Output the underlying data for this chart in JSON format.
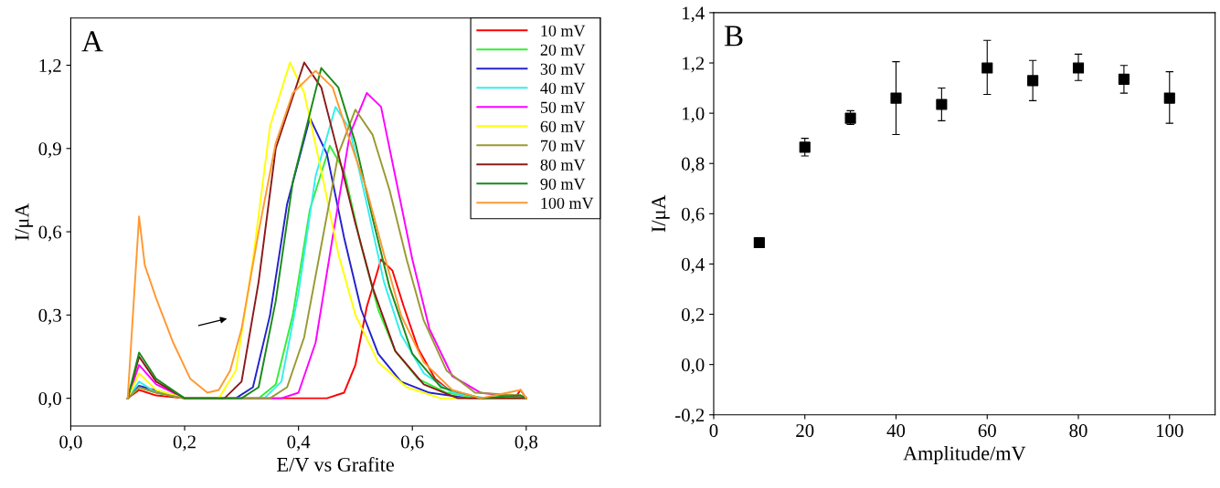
{
  "chart_data": [
    {
      "type": "line",
      "title": "A",
      "xlabel": "E/V vs Grafite",
      "ylabel": "I/μA",
      "xlim": [
        0,
        0.93
      ],
      "ylim": [
        -0.1,
        1.37
      ],
      "xticks": [
        {
          "value": 0,
          "label": "0,0"
        },
        {
          "value": 0.2,
          "label": "0,2"
        },
        {
          "value": 0.4,
          "label": "0,4"
        },
        {
          "value": 0.6,
          "label": "0,6"
        },
        {
          "value": 0.8,
          "label": "0,8"
        }
      ],
      "yticks": [
        {
          "value": 0,
          "label": "0,0"
        },
        {
          "value": 0.3,
          "label": "0,3"
        },
        {
          "value": 0.6,
          "label": "0,6"
        },
        {
          "value": 0.9,
          "label": "0,9"
        },
        {
          "value": 1.2,
          "label": "1,2"
        }
      ],
      "legend": "top right",
      "grid": false,
      "marker": "none",
      "line_style": "solid",
      "series": [
        {
          "name": "10 mV",
          "color": "#ff0000",
          "x": [
            0.1,
            0.12,
            0.15,
            0.2,
            0.45,
            0.48,
            0.5,
            0.52,
            0.545,
            0.565,
            0.585,
            0.61,
            0.64,
            0.67,
            0.72,
            0.78,
            0.79,
            0.8
          ],
          "values": [
            0,
            0.03,
            0.01,
            0,
            0,
            0.02,
            0.12,
            0.33,
            0.5,
            0.46,
            0.33,
            0.18,
            0.07,
            0.02,
            0,
            0,
            0.03,
            0
          ]
        },
        {
          "name": "20 mV",
          "color": "#33ee33",
          "x": [
            0.1,
            0.12,
            0.15,
            0.2,
            0.33,
            0.36,
            0.39,
            0.42,
            0.455,
            0.48,
            0.51,
            0.54,
            0.57,
            0.61,
            0.66,
            0.72,
            0.79,
            0.8
          ],
          "values": [
            0,
            0.04,
            0.02,
            0,
            0,
            0.05,
            0.3,
            0.68,
            0.91,
            0.82,
            0.55,
            0.32,
            0.17,
            0.07,
            0.02,
            0,
            0.01,
            0
          ]
        },
        {
          "name": "30 mV",
          "color": "#2222cc",
          "x": [
            0.1,
            0.12,
            0.2,
            0.29,
            0.32,
            0.35,
            0.38,
            0.42,
            0.45,
            0.48,
            0.51,
            0.54,
            0.58,
            0.63,
            0.7,
            0.8
          ],
          "values": [
            0,
            0.045,
            0,
            0,
            0.04,
            0.3,
            0.7,
            1.01,
            0.88,
            0.58,
            0.32,
            0.16,
            0.06,
            0.02,
            0,
            0
          ]
        },
        {
          "name": "40 mV",
          "color": "#33eeee",
          "x": [
            0.1,
            0.12,
            0.15,
            0.2,
            0.34,
            0.37,
            0.4,
            0.43,
            0.465,
            0.49,
            0.52,
            0.55,
            0.58,
            0.62,
            0.67,
            0.73,
            0.8
          ],
          "values": [
            0,
            0.06,
            0.02,
            0,
            0,
            0.06,
            0.38,
            0.8,
            1.05,
            0.97,
            0.7,
            0.42,
            0.23,
            0.09,
            0.02,
            0,
            0
          ]
        },
        {
          "name": "50 mV",
          "color": "#ff00ff",
          "x": [
            0.1,
            0.12,
            0.15,
            0.2,
            0.37,
            0.4,
            0.43,
            0.46,
            0.49,
            0.52,
            0.545,
            0.57,
            0.6,
            0.63,
            0.67,
            0.72,
            0.8
          ],
          "values": [
            0,
            0.12,
            0.05,
            0,
            0,
            0.02,
            0.2,
            0.58,
            0.95,
            1.1,
            1.05,
            0.8,
            0.5,
            0.25,
            0.08,
            0.02,
            0
          ]
        },
        {
          "name": "60 mV",
          "color": "#ffff00",
          "x": [
            0.1,
            0.12,
            0.15,
            0.2,
            0.26,
            0.29,
            0.32,
            0.35,
            0.385,
            0.41,
            0.44,
            0.47,
            0.5,
            0.54,
            0.59,
            0.65,
            0.8
          ],
          "values": [
            0,
            0.09,
            0.03,
            0,
            0,
            0.1,
            0.5,
            0.98,
            1.21,
            1.1,
            0.82,
            0.52,
            0.3,
            0.13,
            0.04,
            0,
            0
          ]
        },
        {
          "name": "70 mV",
          "color": "#999933",
          "x": [
            0.1,
            0.12,
            0.15,
            0.2,
            0.35,
            0.38,
            0.41,
            0.44,
            0.47,
            0.5,
            0.53,
            0.56,
            0.59,
            0.62,
            0.66,
            0.71,
            0.79,
            0.8
          ],
          "values": [
            0,
            0.04,
            0.02,
            0,
            0,
            0.04,
            0.22,
            0.55,
            0.88,
            1.04,
            0.95,
            0.75,
            0.5,
            0.28,
            0.1,
            0.02,
            0.01,
            0
          ]
        },
        {
          "name": "80 mV",
          "color": "#8b1a1a",
          "x": [
            0.1,
            0.12,
            0.15,
            0.2,
            0.27,
            0.3,
            0.33,
            0.36,
            0.41,
            0.44,
            0.47,
            0.5,
            0.53,
            0.57,
            0.62,
            0.68,
            0.8
          ],
          "values": [
            0,
            0.15,
            0.06,
            0,
            0,
            0.06,
            0.42,
            0.9,
            1.21,
            1.12,
            0.88,
            0.63,
            0.4,
            0.17,
            0.05,
            0,
            0
          ]
        },
        {
          "name": "90 mV",
          "color": "#1a8a1a",
          "x": [
            0.1,
            0.12,
            0.15,
            0.2,
            0.3,
            0.33,
            0.36,
            0.39,
            0.44,
            0.47,
            0.5,
            0.53,
            0.56,
            0.6,
            0.65,
            0.72,
            0.79,
            0.8
          ],
          "values": [
            0,
            0.165,
            0.07,
            0,
            0,
            0.04,
            0.35,
            0.78,
            1.19,
            1.12,
            0.92,
            0.65,
            0.4,
            0.16,
            0.04,
            0,
            0.01,
            0
          ]
        },
        {
          "name": "100 mV",
          "color": "#ff9933",
          "x": [
            0.1,
            0.12,
            0.13,
            0.15,
            0.18,
            0.21,
            0.24,
            0.26,
            0.28,
            0.3,
            0.33,
            0.36,
            0.39,
            0.43,
            0.46,
            0.49,
            0.52,
            0.55,
            0.58,
            0.62,
            0.67,
            0.72,
            0.79,
            0.8
          ],
          "values": [
            0,
            0.655,
            0.48,
            0.36,
            0.2,
            0.07,
            0.02,
            0.03,
            0.1,
            0.25,
            0.6,
            0.92,
            1.1,
            1.18,
            1.12,
            0.93,
            0.75,
            0.52,
            0.3,
            0.13,
            0.03,
            0,
            0.03,
            0
          ]
        }
      ]
    },
    {
      "type": "scatter",
      "title": "B",
      "xlabel": "Amplitude/mV",
      "ylabel": "I/μA",
      "xlim": [
        0,
        110
      ],
      "ylim": [
        -0.2,
        1.4
      ],
      "xticks": [
        0,
        20,
        40,
        60,
        80,
        100
      ],
      "yticks": [
        {
          "value": -0.2,
          "label": "-0,2"
        },
        {
          "value": 0,
          "label": "0,0"
        },
        {
          "value": 0.2,
          "label": "0,2"
        },
        {
          "value": 0.4,
          "label": "0,4"
        },
        {
          "value": 0.6,
          "label": "0,6"
        },
        {
          "value": 0.8,
          "label": "0,8"
        },
        {
          "value": 1.0,
          "label": "1,0"
        },
        {
          "value": 1.2,
          "label": "1,2"
        },
        {
          "value": 1.4,
          "label": "1,4"
        }
      ],
      "grid": false,
      "legend": false,
      "marker": "square",
      "series": [
        {
          "color": "#000000",
          "x": [
            10,
            20,
            30,
            40,
            50,
            60,
            70,
            80,
            90,
            100
          ],
          "values": [
            0.485,
            0.865,
            0.98,
            1.06,
            1.035,
            1.18,
            1.13,
            1.18,
            1.135,
            1.06
          ],
          "errors": [
            [
              0.465,
              0.505
            ],
            [
              0.83,
              0.9
            ],
            [
              0.955,
              1.01
            ],
            [
              0.915,
              1.205
            ],
            [
              0.97,
              1.1
            ],
            [
              1.075,
              1.29
            ],
            [
              1.05,
              1.21
            ],
            [
              1.13,
              1.235
            ],
            [
              1.08,
              1.19
            ],
            [
              0.96,
              1.165
            ]
          ]
        }
      ]
    }
  ]
}
